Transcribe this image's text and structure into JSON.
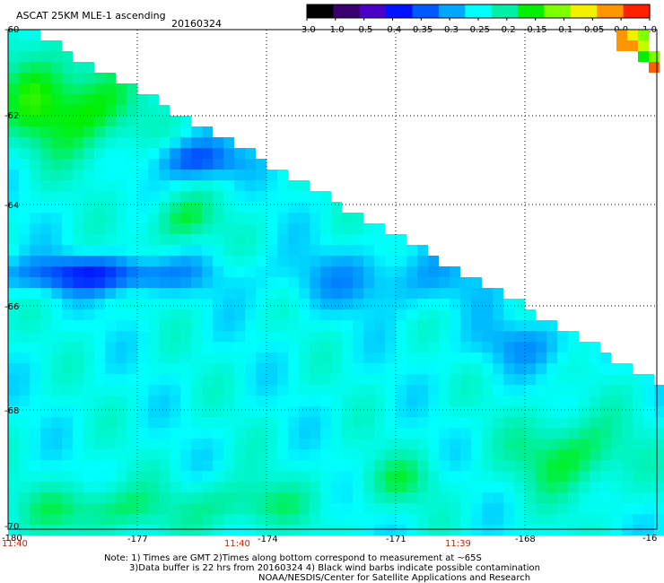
{
  "header": {
    "title": "ASCAT 25KM MLE-1 ascending",
    "date": "20160324"
  },
  "colorbar": {
    "labels": [
      "-3.0",
      "-1.0",
      "-0.5",
      "-0.4",
      "-0.35",
      "-0.3",
      "-0.25",
      "-0.2",
      "-0.15",
      "-0.1",
      "-0.05",
      "0.0",
      "1.0"
    ],
    "colors": [
      "#000000",
      "#3a006e",
      "#4b00c8",
      "#0012ff",
      "#005aff",
      "#00a6ff",
      "#00ffff",
      "#00f0a8",
      "#00f000",
      "#80ff00",
      "#f0f000",
      "#ff9600",
      "#ff2000"
    ]
  },
  "axes": {
    "y_labels": [
      "-60",
      "-62",
      "-64",
      "-66",
      "-68",
      "-70"
    ],
    "x_labels": [
      "-180",
      "-177",
      "-174",
      "-171",
      "-168",
      "-16"
    ],
    "time_labels": [
      "11:40",
      "11:40",
      "11:39"
    ]
  },
  "notes": {
    "line1": "Note: 1) Times are GMT 2)Times along bottom correspond to measurement at ~65S",
    "line2": "3)Data buffer is 22 hrs from 20160324 4) Black wind barbs indicate possible contamination",
    "line3": "NOAA/NESDIS/Center for Satellite Applications and Research"
  }
}
